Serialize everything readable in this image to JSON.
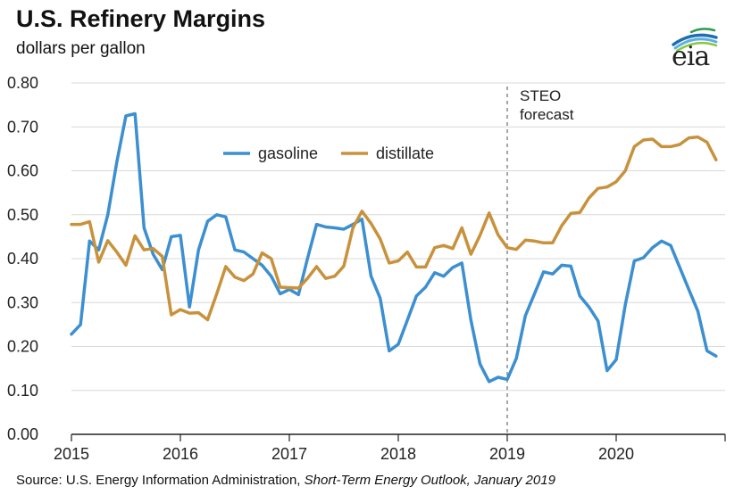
{
  "chart_data": {
    "type": "line",
    "title": "U.S. Refinery Margins",
    "subtitle": "dollars per gallon",
    "ylim": [
      0,
      0.8
    ],
    "yticks": [
      "0.00",
      "0.10",
      "0.20",
      "0.30",
      "0.40",
      "0.50",
      "0.60",
      "0.70",
      "0.80"
    ],
    "ytick_values": [
      0,
      0.1,
      0.2,
      0.3,
      0.4,
      0.5,
      0.6,
      0.7,
      0.8
    ],
    "xlim": [
      2015,
      2021
    ],
    "xticks": [
      "2015",
      "2016",
      "2017",
      "2018",
      "2019",
      "2020"
    ],
    "xtick_values": [
      2015,
      2016,
      2017,
      2018,
      2019,
      2020
    ],
    "forecast_start": 2019,
    "forecast_label_line1": "STEO",
    "forecast_label_line2": "forecast",
    "legend": [
      "gasoline",
      "distillate"
    ],
    "series": [
      {
        "name": "gasoline",
        "color": "#3c8fd0",
        "values": [
          0.228,
          0.25,
          0.44,
          0.42,
          0.5,
          0.62,
          0.725,
          0.73,
          0.47,
          0.41,
          0.375,
          0.45,
          0.453,
          0.29,
          0.42,
          0.485,
          0.5,
          0.495,
          0.42,
          0.415,
          0.4,
          0.385,
          0.36,
          0.32,
          0.33,
          0.318,
          0.4,
          0.478,
          0.472,
          0.47,
          0.467,
          0.478,
          0.49,
          0.36,
          0.31,
          0.19,
          0.205,
          0.26,
          0.315,
          0.335,
          0.368,
          0.36,
          0.38,
          0.39,
          0.26,
          0.16,
          0.12,
          0.13,
          0.125,
          0.173,
          0.27,
          0.32,
          0.37,
          0.365,
          0.385,
          0.383,
          0.315,
          0.29,
          0.258,
          0.145,
          0.17,
          0.295,
          0.395,
          0.402,
          0.425,
          0.44,
          0.43,
          0.38,
          0.33,
          0.28,
          0.19,
          0.178
        ]
      },
      {
        "name": "distillate",
        "color": "#c8923c",
        "values": [
          0.478,
          0.478,
          0.484,
          0.392,
          0.441,
          0.415,
          0.385,
          0.452,
          0.42,
          0.423,
          0.405,
          0.272,
          0.284,
          0.276,
          0.277,
          0.261,
          0.32,
          0.382,
          0.358,
          0.35,
          0.365,
          0.413,
          0.4,
          0.335,
          0.334,
          0.333,
          0.355,
          0.382,
          0.355,
          0.36,
          0.383,
          0.47,
          0.508,
          0.48,
          0.445,
          0.39,
          0.395,
          0.415,
          0.381,
          0.381,
          0.425,
          0.43,
          0.423,
          0.47,
          0.41,
          0.453,
          0.504,
          0.454,
          0.425,
          0.421,
          0.442,
          0.44,
          0.436,
          0.436,
          0.475,
          0.503,
          0.505,
          0.538,
          0.56,
          0.563,
          0.575,
          0.6,
          0.655,
          0.67,
          0.672,
          0.655,
          0.655,
          0.66,
          0.675,
          0.677,
          0.665,
          0.625
        ]
      }
    ]
  },
  "source": {
    "prefix": "Source: U.S. Energy Information Administration, ",
    "italic": "Short-Term Energy Outlook, January 2019"
  },
  "logo": {
    "text": "eia",
    "colors": [
      "#1f6faf",
      "#5bb0e6",
      "#8cc63f",
      "#2d9a48"
    ]
  }
}
